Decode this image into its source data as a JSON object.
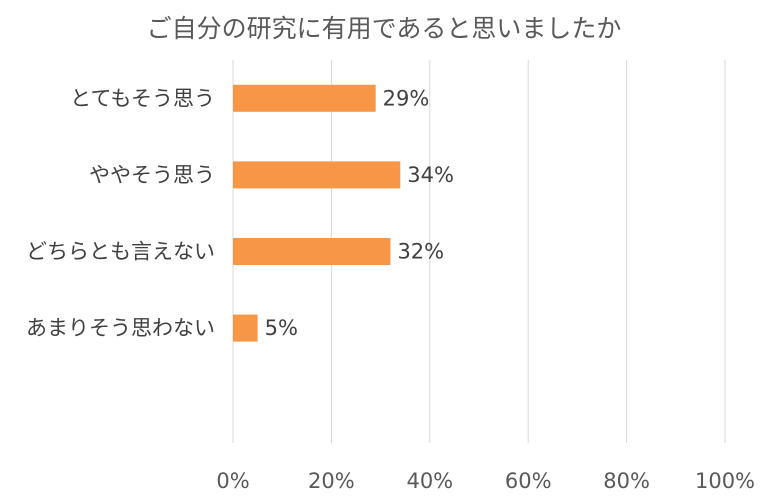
{
  "chart_data": {
    "type": "bar",
    "orientation": "horizontal",
    "title": "ご自分の研究に有用であると思いましたか",
    "categories": [
      "とてもそう思う",
      "ややそう思う",
      "どちらとも言えない",
      "あまりそう思わない"
    ],
    "values": [
      29,
      34,
      32,
      5
    ],
    "value_labels": [
      "29%",
      "34%",
      "32%",
      "5%"
    ],
    "xlabel": "",
    "ylabel": "",
    "xlim": [
      0,
      100
    ],
    "xticks": [
      0,
      20,
      40,
      60,
      80,
      100
    ],
    "xtick_labels": [
      "0%",
      "20%",
      "40%",
      "60%",
      "80%",
      "100%"
    ],
    "grid": "vertical",
    "legend": "none",
    "colors": {
      "bar": "#F79646",
      "grid": "#D9D9D9"
    }
  }
}
